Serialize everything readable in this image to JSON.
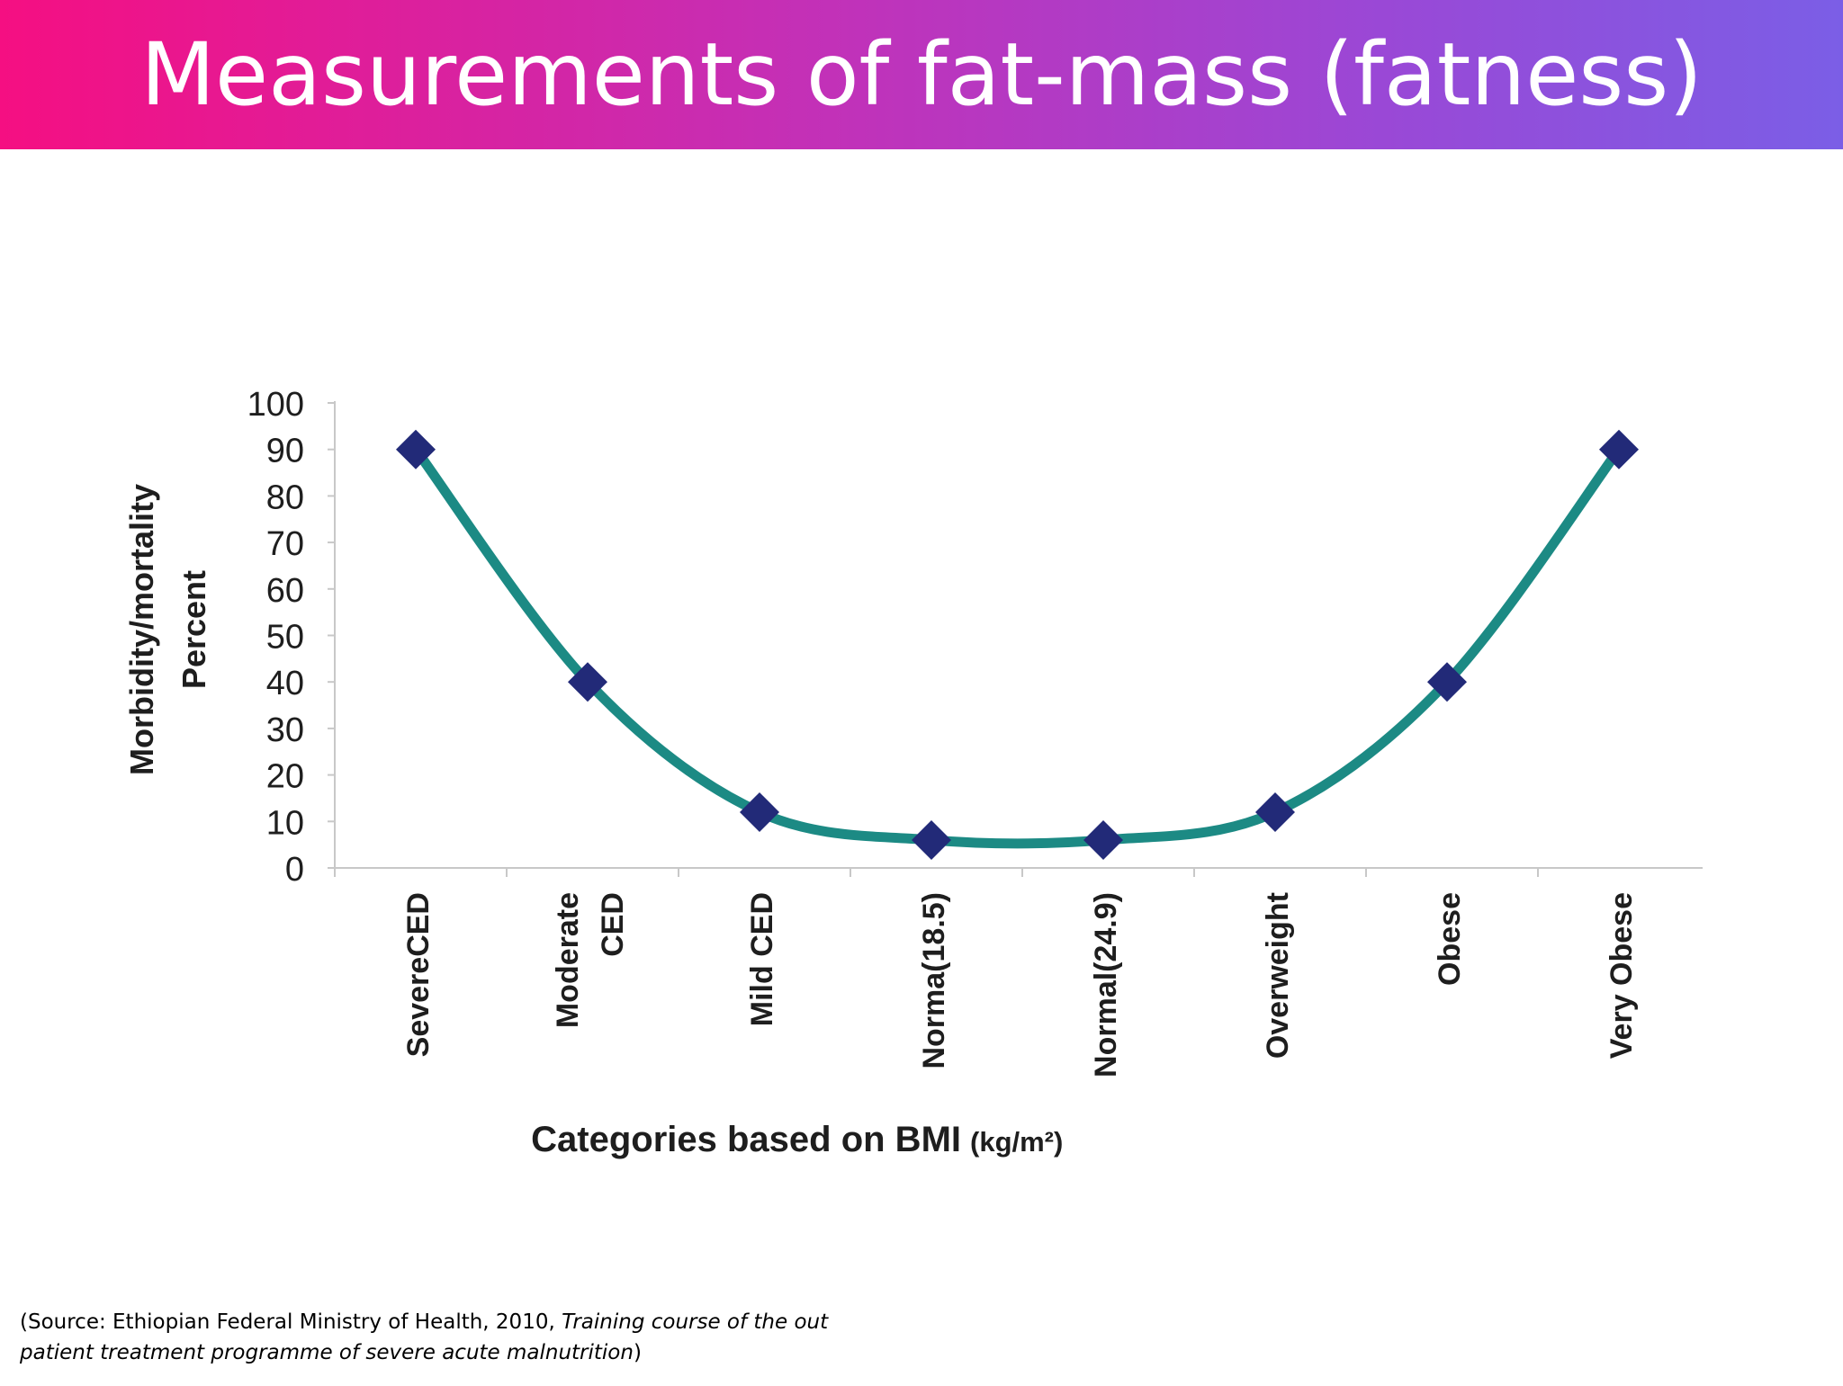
{
  "slide": {
    "title": "Measurements of fat-mass (fatness)",
    "footer": {
      "prefix": "(Source: Ethiopian Federal Ministry of Health, 2010, ",
      "italic": "Training course of the out patient treatment programme of severe acute malnutrition",
      "suffix": ")"
    }
  },
  "colors": {
    "title_gradient": [
      "#f50f82",
      "#c231b8",
      "#9a48d6",
      "#7b5ee6"
    ],
    "line": "#1c8a84",
    "marker": "#222a78",
    "axis": "#c8c8c8"
  },
  "chart_data": {
    "type": "line",
    "title": "",
    "xlabel": "Categories based on BMI",
    "xlabel_unit": "(kg/m²)",
    "ylabel_lines": [
      "Morbidity/mortality",
      "Percent"
    ],
    "ylim": [
      0,
      100
    ],
    "yticks": [
      0,
      10,
      20,
      30,
      40,
      50,
      60,
      70,
      80,
      90,
      100
    ],
    "categories": [
      [
        "SevereCED"
      ],
      [
        "Moderate",
        "CED"
      ],
      [
        "Mild CED"
      ],
      [
        "Norma(18.5)"
      ],
      [
        "Normal(24.9)"
      ],
      [
        "Overweight"
      ],
      [
        "Obese"
      ],
      [
        "Very Obese"
      ]
    ],
    "series": [
      {
        "values": [
          90,
          40,
          12,
          6,
          6,
          12,
          40,
          90
        ],
        "marker": "diamond",
        "smooth": true
      }
    ],
    "grid": false,
    "legend": "none"
  }
}
